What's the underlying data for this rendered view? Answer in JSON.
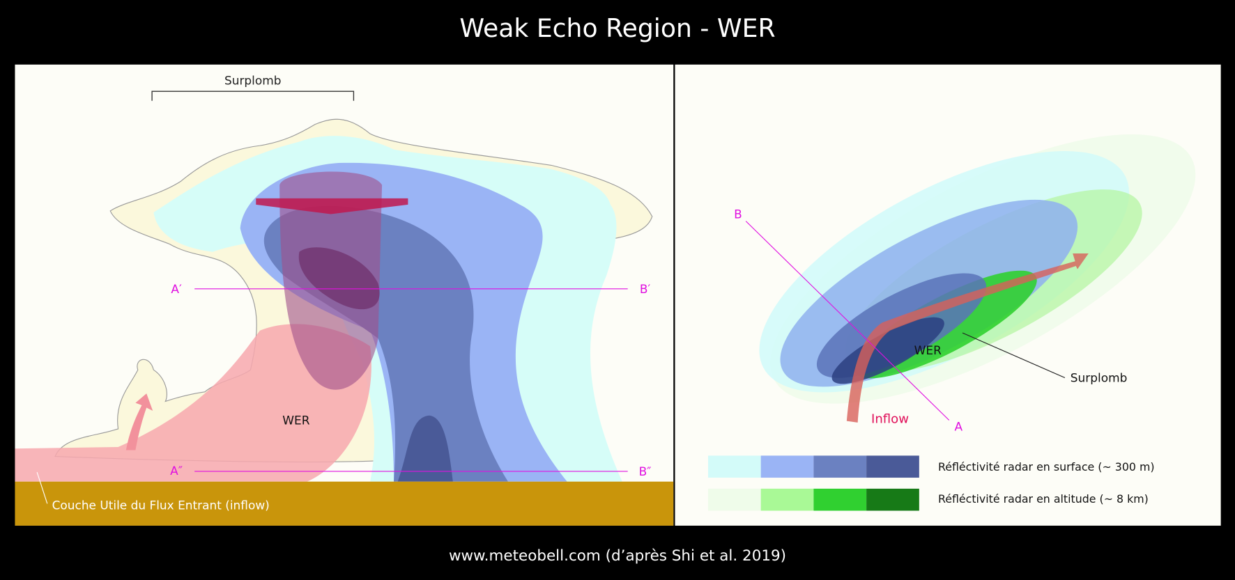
{
  "title": "Weak Echo Region - WER",
  "left": {
    "overhang": "Surplomb",
    "a_prime": "A′",
    "b_prime": "B′",
    "a_second": "A″",
    "b_second": "B″",
    "wer": "WER",
    "inflow_layer": "Couche Utile du Flux Entrant (inflow)"
  },
  "right": {
    "b": "B",
    "a": "A",
    "wer": "WER",
    "overhang": "Surplomb",
    "inflow": "Inflow"
  },
  "legend": {
    "surface": "Réfléctivité radar en surface (~ 300 m)",
    "altitude": "Réfléctivité radar en altitude (~ 8 km)"
  },
  "footer": "www.meteobell.com (d’après Shi et al. 2019)"
}
